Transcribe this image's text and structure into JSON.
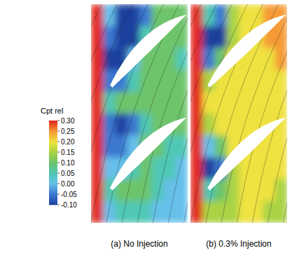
{
  "chart_data": {
    "type": "heatmap",
    "tick_labels": false,
    "colorbar": {
      "title": "Cpt rel",
      "range": [
        -0.1,
        0.3
      ],
      "ticks": [
        {
          "value": 0.3,
          "label": "0.30"
        },
        0.25,
        {
          "value": 0.2,
          "label": "0.20"
        },
        0.15,
        {
          "value": 0.1,
          "label": "0.10"
        },
        0.05,
        {
          "value": 0,
          "label": "0.00"
        },
        -0.05,
        {
          "value": -0.1,
          "label": "-0.10"
        }
      ]
    },
    "panels": [
      {
        "title": "(a) No Injection",
        "cells": [
          [
            0.3,
            0.0,
            -0.1,
            -0.1,
            -0.05,
            0.1,
            0.1,
            0.1
          ],
          [
            0.3,
            -0.05,
            -0.1,
            -0.1,
            0.05,
            0.1,
            0.1,
            0.1
          ],
          [
            0.3,
            -0.1,
            -0.1,
            0.0,
            0.1,
            0.1,
            0.1,
            0.05
          ],
          [
            0.3,
            -0.05,
            -0.05,
            0.05,
            0.1,
            0.1,
            0.1,
            0.1
          ],
          [
            0.3,
            0.05,
            0.1,
            0.1,
            0.1,
            0.1,
            0.1,
            0.1
          ],
          [
            0.3,
            -0.05,
            -0.1,
            -0.05,
            0.05,
            0.1,
            0.1,
            0.1
          ],
          [
            0.3,
            -0.05,
            -0.05,
            0.0,
            0.1,
            0.1,
            0.05,
            0.05
          ],
          [
            0.3,
            0.0,
            0.0,
            0.05,
            0.1,
            0.05,
            0.05,
            0.0
          ],
          [
            0.3,
            0.05,
            0.1,
            0.1,
            0.1,
            0.05,
            0.0,
            0.0
          ],
          [
            0.3,
            0.0,
            0.05,
            0.05,
            0.05,
            0.0,
            0.0,
            0.0
          ]
        ]
      },
      {
        "title": "(b) 0.3% Injection",
        "cells": [
          [
            0.3,
            0.05,
            -0.05,
            0.15,
            0.2,
            0.2,
            0.25,
            0.25
          ],
          [
            0.3,
            -0.1,
            -0.1,
            0.15,
            0.2,
            0.2,
            0.25,
            0.25
          ],
          [
            0.3,
            -0.05,
            0.1,
            0.2,
            0.2,
            0.2,
            0.2,
            0.25
          ],
          [
            0.3,
            0.15,
            0.2,
            0.2,
            0.2,
            0.2,
            0.2,
            0.2
          ],
          [
            0.3,
            0.2,
            0.2,
            0.2,
            0.2,
            0.2,
            0.2,
            0.2
          ],
          [
            0.3,
            0.15,
            0.2,
            0.2,
            0.2,
            0.2,
            0.2,
            0.2
          ],
          [
            0.3,
            0.0,
            0.1,
            0.2,
            0.2,
            0.2,
            0.2,
            0.2
          ],
          [
            0.3,
            -0.1,
            -0.05,
            0.15,
            0.2,
            0.2,
            0.2,
            0.2
          ],
          [
            0.3,
            0.05,
            0.1,
            0.15,
            0.2,
            0.2,
            0.2,
            0.15
          ],
          [
            0.3,
            0.15,
            0.15,
            0.15,
            0.2,
            0.2,
            0.15,
            0.15
          ]
        ]
      }
    ]
  }
}
